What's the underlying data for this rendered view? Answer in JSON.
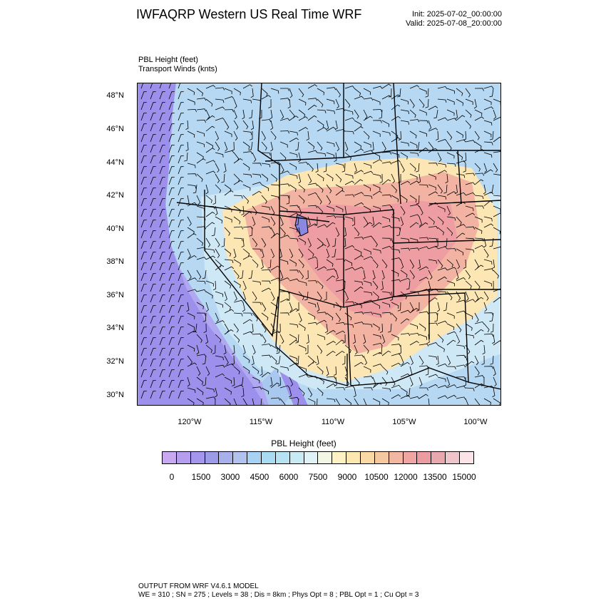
{
  "header": {
    "title": "IWFAQRP Western US Real Time WRF",
    "init": "Init: 2025-07-02_00:00:00",
    "valid": "Valid: 2025-07-08_20:00:00"
  },
  "fields": {
    "line1": "PBL Height   (feet)",
    "line2": "Transport Winds   (knts)"
  },
  "map": {
    "lat_labels": [
      "48°N",
      "46°N",
      "44°N",
      "42°N",
      "40°N",
      "38°N",
      "36°N",
      "34°N",
      "32°N",
      "30°N"
    ],
    "lon_labels": [
      "120°W",
      "115°W",
      "110°W",
      "105°W",
      "100°W"
    ],
    "palette": [
      "#c9a8f2",
      "#b59ef0",
      "#a396ec",
      "#9c9be8",
      "#a7b0ea",
      "#b2c2ee",
      "#a8d2f2",
      "#a9dcf3",
      "#b6e3f1",
      "#c8eaf4",
      "#dff2f6",
      "#f2f7e3",
      "#fcf2c4",
      "#fbe7b0",
      "#fad9a5",
      "#f6c8a0",
      "#f3b6a0",
      "#f1a5a2",
      "#ec9ca1",
      "#e9a7ae",
      "#f0c4cb",
      "#fbe3e8"
    ]
  },
  "colorbar": {
    "title": "PBL Height  (feet)",
    "labels": [
      "0",
      "1500",
      "3000",
      "4500",
      "6000",
      "7500",
      "9000",
      "10500",
      "12000",
      "13500",
      "15000"
    ]
  },
  "footer": {
    "line1": "OUTPUT FROM WRF V4.6.1 MODEL",
    "line2": "WE = 310 ; SN = 275 ; Levels = 38 ; Dis = 8km ; Phys Opt = 8 ; PBL Opt = 1 ; Cu Opt = 3"
  }
}
